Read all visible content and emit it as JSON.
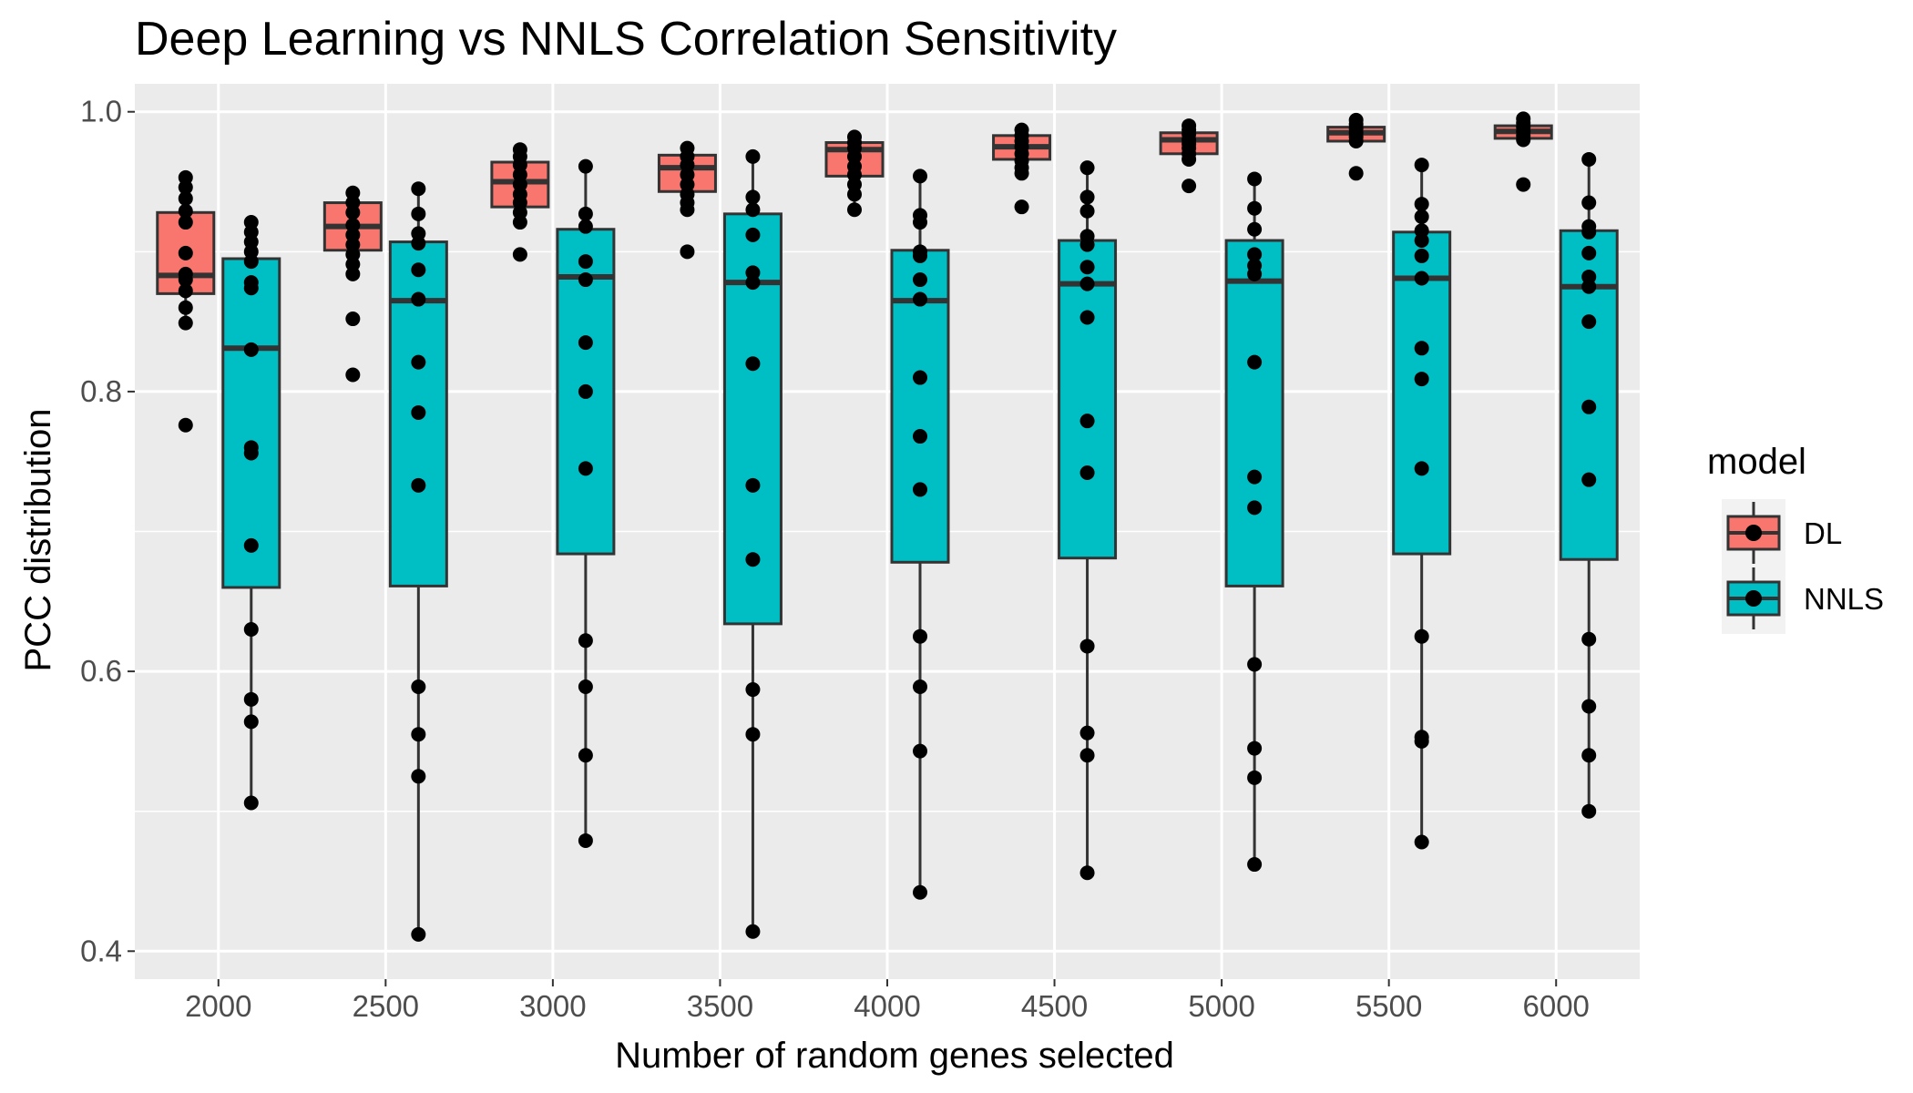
{
  "chart_data": {
    "type": "box",
    "title": "Deep Learning vs NNLS Correlation Sensitivity",
    "xlabel": "Number of random genes selected",
    "ylabel": "PCC distribution",
    "ylim": [
      0.38,
      1.02
    ],
    "y_ticks": [
      "0.4",
      "0.6",
      "0.8",
      "1.0"
    ],
    "categories": [
      "2000",
      "2500",
      "3000",
      "3500",
      "4000",
      "4500",
      "5000",
      "5500",
      "6000"
    ],
    "grid": true,
    "legend": {
      "title": "model",
      "placement": "right"
    },
    "colors": {
      "DL": "#F8766D",
      "NNLS": "#00BFC4",
      "panel": "#EBEBEB",
      "grid": "#FFFFFF",
      "outline": "#333333",
      "point": "#000000"
    },
    "series": [
      {
        "name": "DL",
        "boxes": [
          {
            "q1": 0.87,
            "median": 0.883,
            "q3": 0.928,
            "lower": 0.849,
            "upper": 0.953
          },
          {
            "q1": 0.901,
            "median": 0.918,
            "q3": 0.935,
            "lower": 0.884,
            "upper": 0.942
          },
          {
            "q1": 0.932,
            "median": 0.95,
            "q3": 0.964,
            "lower": 0.921,
            "upper": 0.973
          },
          {
            "q1": 0.943,
            "median": 0.96,
            "q3": 0.969,
            "lower": 0.93,
            "upper": 0.974
          },
          {
            "q1": 0.954,
            "median": 0.973,
            "q3": 0.978,
            "lower": 0.93,
            "upper": 0.982
          },
          {
            "q1": 0.966,
            "median": 0.975,
            "q3": 0.983,
            "lower": 0.956,
            "upper": 0.987
          },
          {
            "q1": 0.97,
            "median": 0.98,
            "q3": 0.985,
            "lower": 0.965,
            "upper": 0.99
          },
          {
            "q1": 0.979,
            "median": 0.985,
            "q3": 0.989,
            "lower": 0.975,
            "upper": 0.994
          },
          {
            "q1": 0.981,
            "median": 0.986,
            "q3": 0.99,
            "lower": 0.977,
            "upper": 0.995
          }
        ],
        "points": [
          [
            0.953,
            0.946,
            0.938,
            0.929,
            0.921,
            0.899,
            0.884,
            0.88,
            0.872,
            0.86,
            0.849,
            0.776
          ],
          [
            0.942,
            0.935,
            0.928,
            0.919,
            0.912,
            0.905,
            0.898,
            0.891,
            0.884,
            0.852,
            0.812
          ],
          [
            0.973,
            0.968,
            0.962,
            0.955,
            0.948,
            0.941,
            0.935,
            0.928,
            0.921,
            0.898
          ],
          [
            0.974,
            0.968,
            0.962,
            0.955,
            0.948,
            0.941,
            0.935,
            0.93,
            0.9
          ],
          [
            0.982,
            0.978,
            0.974,
            0.968,
            0.961,
            0.955,
            0.948,
            0.941,
            0.93
          ],
          [
            0.987,
            0.983,
            0.979,
            0.975,
            0.97,
            0.965,
            0.96,
            0.956,
            0.932
          ],
          [
            0.99,
            0.987,
            0.984,
            0.98,
            0.977,
            0.974,
            0.97,
            0.966,
            0.947
          ],
          [
            0.994,
            0.991,
            0.988,
            0.985,
            0.982,
            0.979,
            0.956
          ],
          [
            0.995,
            0.992,
            0.989,
            0.986,
            0.983,
            0.98,
            0.948
          ]
        ]
      },
      {
        "name": "NNLS",
        "boxes": [
          {
            "q1": 0.66,
            "median": 0.831,
            "q3": 0.895,
            "lower": 0.506,
            "upper": 0.921
          },
          {
            "q1": 0.661,
            "median": 0.865,
            "q3": 0.907,
            "lower": 0.412,
            "upper": 0.945
          },
          {
            "q1": 0.684,
            "median": 0.882,
            "q3": 0.916,
            "lower": 0.479,
            "upper": 0.961
          },
          {
            "q1": 0.634,
            "median": 0.878,
            "q3": 0.927,
            "lower": 0.414,
            "upper": 0.968
          },
          {
            "q1": 0.678,
            "median": 0.865,
            "q3": 0.901,
            "lower": 0.442,
            "upper": 0.954
          },
          {
            "q1": 0.681,
            "median": 0.877,
            "q3": 0.908,
            "lower": 0.456,
            "upper": 0.96
          },
          {
            "q1": 0.661,
            "median": 0.879,
            "q3": 0.908,
            "lower": 0.462,
            "upper": 0.952
          },
          {
            "q1": 0.684,
            "median": 0.881,
            "q3": 0.914,
            "lower": 0.478,
            "upper": 0.962
          },
          {
            "q1": 0.68,
            "median": 0.875,
            "q3": 0.915,
            "lower": 0.5,
            "upper": 0.966
          }
        ],
        "points": [
          [
            0.921,
            0.914,
            0.907,
            0.9,
            0.893,
            0.878,
            0.874,
            0.83,
            0.76,
            0.756,
            0.69,
            0.63,
            0.58,
            0.564,
            0.506
          ],
          [
            0.945,
            0.927,
            0.913,
            0.906,
            0.887,
            0.866,
            0.821,
            0.785,
            0.733,
            0.589,
            0.555,
            0.525,
            0.412
          ],
          [
            0.961,
            0.927,
            0.918,
            0.893,
            0.88,
            0.835,
            0.8,
            0.745,
            0.622,
            0.589,
            0.54,
            0.479
          ],
          [
            0.968,
            0.939,
            0.93,
            0.912,
            0.885,
            0.878,
            0.82,
            0.733,
            0.68,
            0.587,
            0.555,
            0.414
          ],
          [
            0.954,
            0.926,
            0.921,
            0.9,
            0.897,
            0.88,
            0.866,
            0.81,
            0.768,
            0.73,
            0.625,
            0.589,
            0.543,
            0.442
          ],
          [
            0.96,
            0.939,
            0.929,
            0.911,
            0.905,
            0.889,
            0.877,
            0.853,
            0.779,
            0.742,
            0.618,
            0.556,
            0.54,
            0.456
          ],
          [
            0.952,
            0.931,
            0.916,
            0.898,
            0.89,
            0.884,
            0.821,
            0.739,
            0.717,
            0.605,
            0.545,
            0.524,
            0.462
          ],
          [
            0.962,
            0.934,
            0.925,
            0.915,
            0.908,
            0.897,
            0.881,
            0.831,
            0.809,
            0.745,
            0.625,
            0.553,
            0.55,
            0.478
          ],
          [
            0.966,
            0.935,
            0.918,
            0.914,
            0.899,
            0.882,
            0.875,
            0.85,
            0.789,
            0.737,
            0.623,
            0.575,
            0.54,
            0.5
          ]
        ]
      }
    ]
  }
}
